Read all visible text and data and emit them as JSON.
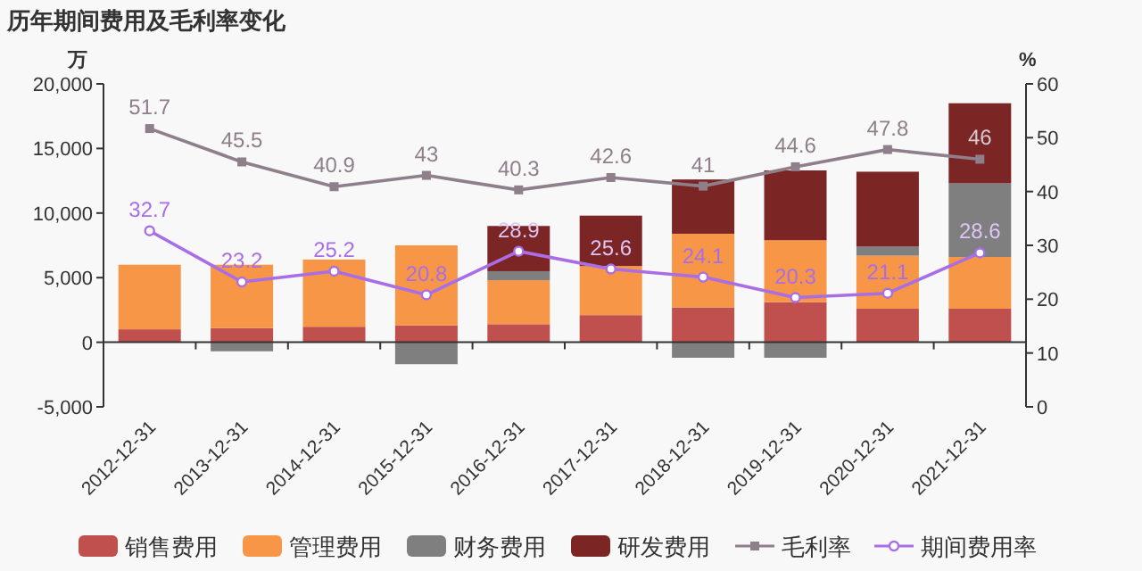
{
  "chart_data": {
    "type": "bar",
    "title": "历年期间费用及毛利率变化",
    "ylabel": "万",
    "y2label": "%",
    "stacked": true,
    "categories": [
      "2012-12-31",
      "2013-12-31",
      "2014-12-31",
      "2015-12-31",
      "2016-12-31",
      "2017-12-31",
      "2018-12-31",
      "2019-12-31",
      "2020-12-31",
      "2021-12-31"
    ],
    "series": [
      {
        "name": "销售费用",
        "color": "#c0504d",
        "values": [
          1000,
          1100,
          1200,
          1300,
          1400,
          2100,
          2700,
          3100,
          2600,
          2600
        ]
      },
      {
        "name": "管理费用",
        "color": "#f79646",
        "values": [
          5000,
          4900,
          5200,
          6200,
          3400,
          3800,
          5700,
          4800,
          4100,
          4000
        ]
      },
      {
        "name": "财务费用",
        "color": "#7f7f7f",
        "values": [
          0,
          -700,
          0,
          -1700,
          700,
          null,
          -1200,
          -1200,
          700,
          5700
        ]
      },
      {
        "name": "研发费用",
        "color": "#7b2525",
        "values": [
          0,
          0,
          0,
          0,
          3500,
          3900,
          4200,
          5400,
          5800,
          6200
        ]
      },
      {
        "name": "毛利率",
        "type": "line",
        "axis": "y2",
        "color": "#8e7f8a",
        "marker": "square",
        "values": [
          51.7,
          45.5,
          40.9,
          43,
          40.3,
          42.6,
          41,
          44.6,
          47.8,
          46
        ],
        "value_labels": [
          "51.7",
          "45.5",
          "40.9",
          "43",
          "40.3",
          "42.6",
          "41",
          "44.6",
          "47.8",
          "46"
        ]
      },
      {
        "name": "期间费用率",
        "type": "line",
        "axis": "y2",
        "color": "#a96ee6",
        "marker": "circle",
        "values": [
          32.7,
          23.2,
          25.2,
          20.8,
          28.9,
          25.6,
          24.1,
          20.3,
          21.1,
          28.6
        ],
        "value_labels": [
          "32.7",
          "23.2",
          "25.2",
          "20.8",
          "28.9",
          "25.6",
          "24.1",
          "20.3",
          "21.1",
          "28.6"
        ]
      }
    ],
    "ylim": [
      -5000,
      20000
    ],
    "yticks": [
      {
        "value": -5000,
        "label": "-5,000"
      },
      0,
      {
        "value": 5000,
        "label": "5,000"
      },
      {
        "value": 10000,
        "label": "10,000"
      },
      {
        "value": 15000,
        "label": "15,000"
      },
      {
        "value": 20000,
        "label": "20,000"
      }
    ],
    "y2lim": [
      0,
      60
    ],
    "y2ticks": [
      0,
      10,
      20,
      30,
      40,
      50,
      60
    ],
    "legend": "bottom"
  }
}
